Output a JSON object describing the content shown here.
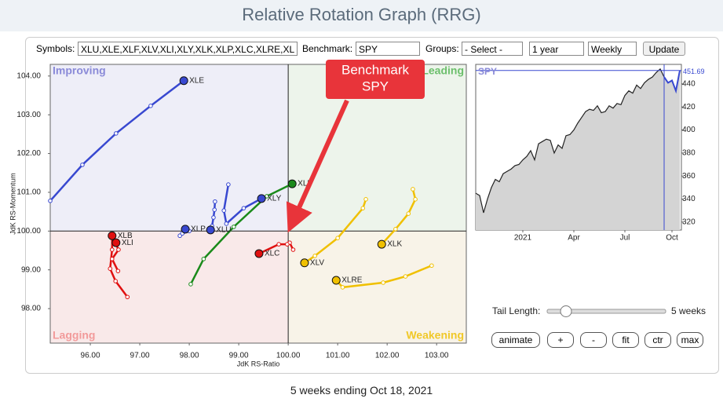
{
  "title": "Relative Rotation Graph (RRG)",
  "controls": {
    "symbols_label": "Symbols:",
    "symbols": "XLU,XLE,XLF,XLV,XLI,XLY,XLK,XLP,XLC,XLRE,XL",
    "benchmark_label": "Benchmark:",
    "benchmark": "SPY",
    "groups_label": "Groups:",
    "groups": "- Select -",
    "period": "1 year",
    "frequency": "Weekly",
    "update": "Update"
  },
  "annotation": {
    "line1": "Benchmark",
    "line2": "SPY"
  },
  "tail": {
    "label": "Tail Length:",
    "value": "5 weeks"
  },
  "buttons": [
    "animate",
    "+",
    "-",
    "fit",
    "ctr",
    "max"
  ],
  "footer": "5 weeks ending Oct 18, 2021",
  "chart_data": [
    {
      "type": "rrg",
      "x_label": "JdK RS-Ratio",
      "y_label": "JdK RS-Momentum",
      "quadrants": {
        "improving": "Improving",
        "leading": "Leading",
        "lagging": "Lagging",
        "weakening": "Weakening"
      },
      "xlim": [
        95.19,
        103.6
      ],
      "ylim": [
        97.11,
        104.3
      ],
      "xticks": [
        {
          "value": 96,
          "label": "96.00"
        },
        {
          "value": 97,
          "label": "97.00"
        },
        {
          "value": 98,
          "label": "98.00"
        },
        {
          "value": 99,
          "label": "99.00"
        },
        {
          "value": 100,
          "label": "100.00"
        },
        {
          "value": 101,
          "label": "101.00"
        },
        {
          "value": 102,
          "label": "102.00"
        },
        {
          "value": 103,
          "label": "103.00"
        }
      ],
      "yticks": [
        {
          "value": 98,
          "label": "98.00"
        },
        {
          "value": 99,
          "label": "99.00"
        },
        {
          "value": 100,
          "label": "100.00"
        },
        {
          "value": 101,
          "label": "101.00"
        },
        {
          "value": 102,
          "label": "102.00"
        },
        {
          "value": 103,
          "label": "103.00"
        },
        {
          "value": 104,
          "label": "104.00"
        }
      ],
      "series": [
        {
          "name": "XLE",
          "color": "#3848d0",
          "x": [
            95.19,
            95.84,
            96.52,
            97.22,
            97.89
          ],
          "y": [
            100.78,
            101.71,
            102.52,
            103.23,
            103.88
          ]
        },
        {
          "name": "XLF",
          "color": "#1a8a1a",
          "x": [
            98.03,
            98.29,
            98.9,
            99.57,
            100.08
          ],
          "y": [
            98.63,
            99.28,
            100.11,
            100.9,
            101.22
          ]
        },
        {
          "name": "XLY",
          "color": "#3848d0",
          "x": [
            98.79,
            98.7,
            98.75,
            99.1,
            99.46
          ],
          "y": [
            101.2,
            100.53,
            100.19,
            100.59,
            100.84
          ]
        },
        {
          "name": "XLP",
          "color": "#3848d0",
          "x": [
            97.81,
            97.86,
            98.0,
            97.95,
            97.92
          ],
          "y": [
            99.88,
            99.94,
            100.0,
            100.05,
            100.05
          ]
        },
        {
          "name": "XLU",
          "color": "#3848d0",
          "x": [
            98.52,
            98.51,
            98.49,
            98.46,
            98.43
          ],
          "y": [
            100.76,
            100.55,
            100.35,
            100.13,
            100.03
          ]
        },
        {
          "name": "XLC",
          "color": "#e01010",
          "x": [
            100.1,
            100.03,
            99.98,
            99.81,
            99.41
          ],
          "y": [
            99.52,
            99.7,
            99.66,
            99.66,
            99.42
          ]
        },
        {
          "name": "XLB",
          "color": "#e01010",
          "x": [
            96.75,
            96.51,
            96.4,
            96.44,
            96.44
          ],
          "y": [
            98.3,
            98.71,
            99.03,
            99.52,
            99.88
          ]
        },
        {
          "name": "XLI",
          "color": "#e01010",
          "x": [
            96.56,
            96.44,
            96.57,
            96.52,
            96.52
          ],
          "y": [
            98.97,
            99.28,
            99.52,
            99.66,
            99.7
          ]
        },
        {
          "name": "XLK",
          "color": "#f0c000",
          "x": [
            102.52,
            102.57,
            102.43,
            102.17,
            101.89
          ],
          "y": [
            101.08,
            100.82,
            100.45,
            100.05,
            99.66
          ]
        },
        {
          "name": "XLV",
          "color": "#f0c000",
          "x": [
            101.57,
            101.51,
            101.0,
            100.54,
            100.33
          ],
          "y": [
            100.82,
            100.59,
            99.82,
            99.36,
            99.18
          ]
        },
        {
          "name": "XLRE",
          "color": "#f0c000",
          "x": [
            102.9,
            102.37,
            101.92,
            101.1,
            100.97
          ],
          "y": [
            99.11,
            98.83,
            98.67,
            98.55,
            98.73
          ]
        }
      ]
    },
    {
      "type": "line",
      "title": "SPY",
      "color": "#222222",
      "fill": "#d4d4d4",
      "categories": [
        null,
        null,
        null,
        null,
        null,
        null,
        null,
        null,
        null,
        null,
        null,
        null,
        "2021",
        null,
        null,
        null,
        null,
        null,
        null,
        null,
        null,
        null,
        null,
        null,
        null,
        "Apr",
        null,
        null,
        null,
        null,
        null,
        null,
        null,
        null,
        null,
        null,
        null,
        null,
        "Jul",
        null,
        null,
        null,
        null,
        null,
        null,
        null,
        null,
        null,
        null,
        null,
        "Oct",
        null,
        null
      ],
      "values": [
        345,
        343,
        328,
        340,
        350,
        357,
        355,
        362,
        364,
        366,
        369,
        370,
        374,
        377,
        382,
        374,
        388,
        390,
        392,
        391,
        380,
        387,
        384,
        395,
        396,
        400,
        406,
        411,
        416,
        418,
        417,
        421,
        415,
        416,
        421,
        419,
        423,
        422,
        430,
        434,
        432,
        439,
        436,
        441,
        444,
        446,
        450,
        453,
        446,
        441,
        443,
        434,
        451.69
      ],
      "ylim": [
        313,
        457
      ],
      "yticks": [
        320,
        340,
        360,
        380,
        400,
        420,
        440
      ]
    }
  ]
}
